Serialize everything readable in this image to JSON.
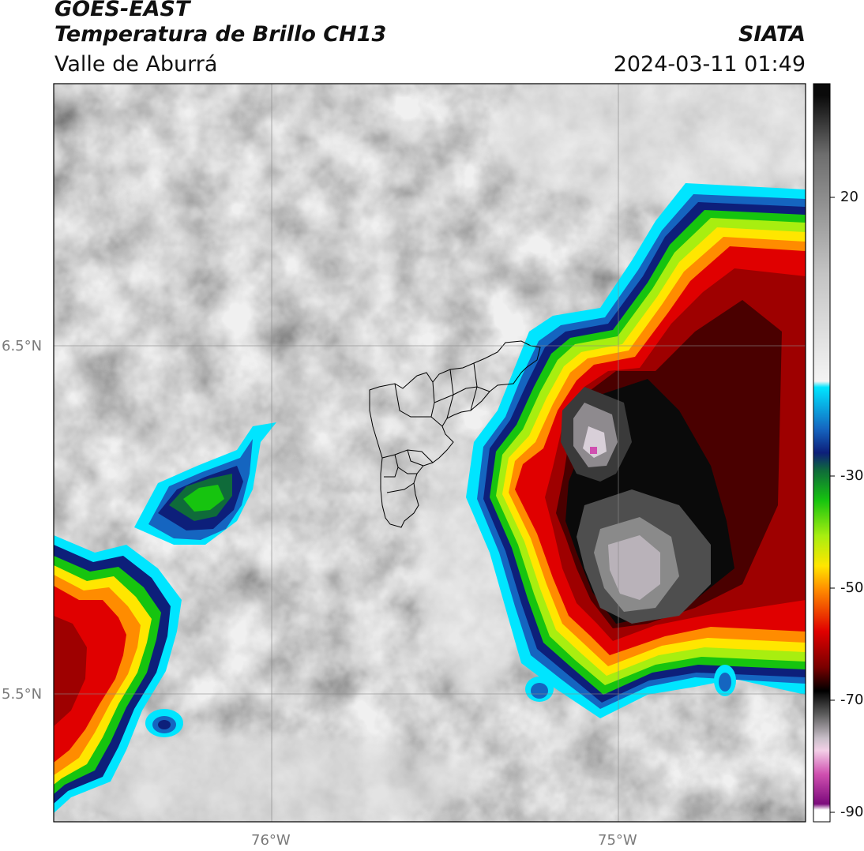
{
  "header": {
    "satellite": "GOES-EAST",
    "product": "Temperatura de Brillo CH13",
    "region": "Valle de Aburrá",
    "agency": "SIATA",
    "datetime": "2024-03-11 01:49"
  },
  "axes": {
    "lat_ticks": [
      "6.5°N",
      "5.5°N"
    ],
    "lon_ticks": [
      "76°W",
      "75°W"
    ]
  },
  "colorbar": {
    "ticks": [
      "20",
      "-30",
      "-50",
      "-70",
      "-90"
    ],
    "stops": [
      {
        "value": 30,
        "color": "#0a0a0a"
      },
      {
        "value": 20,
        "color": "#6e6e6e"
      },
      {
        "value": 0,
        "color": "#c4c4c4"
      },
      {
        "value": -18,
        "color": "#f4f4f4"
      },
      {
        "value": -19,
        "color": "#00e5ff"
      },
      {
        "value": -26,
        "color": "#1565c0"
      },
      {
        "value": -30,
        "color": "#0d1f7a"
      },
      {
        "value": -33,
        "color": "#0f6b3a"
      },
      {
        "value": -38,
        "color": "#16c40f"
      },
      {
        "value": -44,
        "color": "#a8ee10"
      },
      {
        "value": -49,
        "color": "#ffe600"
      },
      {
        "value": -53,
        "color": "#ff8c00"
      },
      {
        "value": -60,
        "color": "#e00000"
      },
      {
        "value": -66,
        "color": "#7a0000"
      },
      {
        "value": -70,
        "color": "#000000"
      },
      {
        "value": -74,
        "color": "#5e5e5e"
      },
      {
        "value": -78,
        "color": "#c9bfc9"
      },
      {
        "value": -80,
        "color": "#f3cfe7"
      },
      {
        "value": -84,
        "color": "#d050b0"
      },
      {
        "value": -89,
        "color": "#7c0a7c"
      },
      {
        "value": -90,
        "color": "#ffffff"
      }
    ]
  }
}
